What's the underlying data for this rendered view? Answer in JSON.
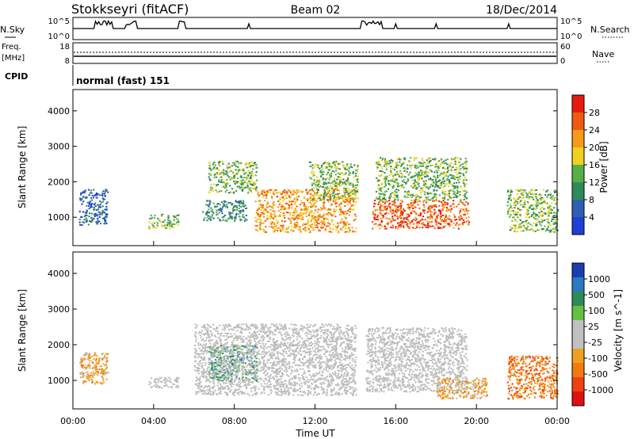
{
  "header": {
    "station": "Stokkseyri (fitACF)",
    "beam": "Beam 02",
    "date": "18/Dec/2014"
  },
  "top_panels": {
    "nsky_label": "N.Sky",
    "nsky_ticks": [
      "10^5",
      "10^0"
    ],
    "nsearch_label": "N.Search",
    "nsearch_ticks": [
      "10^5",
      "10^0"
    ],
    "freq_label_line1": "Freq.",
    "freq_label_line2": "[MHz]",
    "freq_ticks": [
      "18",
      "8"
    ],
    "nave_label": "Nave",
    "nave_ticks": [
      "60",
      "0"
    ],
    "cpid_label": "CPID",
    "cpid_value": "normal (fast) 151"
  },
  "colors": {
    "power_scale": [
      "#1f3fd6",
      "#2f5fb0",
      "#2f8a5a",
      "#55b04a",
      "#f0d020",
      "#f79a1a",
      "#f05a10",
      "#e81a10"
    ],
    "velocity_scale": [
      "#1a3db0",
      "#2a7ac0",
      "#2f8a5a",
      "#66c040",
      "#c0c0c0",
      "#c0c0c0",
      "#f0a020",
      "#f07a10",
      "#f04010",
      "#e01010"
    ],
    "ground_scatter": "#bdbdbd"
  },
  "chart_data": [
    {
      "type": "heatmap",
      "panel": "power",
      "ylabel": "Slant Range [km]",
      "xlabel": "Time UT",
      "x_ticks": [
        "00:00",
        "04:00",
        "08:00",
        "12:00",
        "16:00",
        "20:00",
        "00:00"
      ],
      "y_ticks": [
        "1000",
        "2000",
        "3000",
        "4000"
      ],
      "ylim": [
        200,
        4600
      ],
      "xlim_hours": [
        0,
        24
      ],
      "colorbar_label": "Power [dB]",
      "colorbar_ticks": [
        "4",
        "8",
        "12",
        "16",
        "20",
        "24",
        "28"
      ],
      "colorbar_range": [
        0,
        32
      ],
      "regions": [
        {
          "t0": 0.3,
          "t1": 1.7,
          "r0": 800,
          "r1": 1800,
          "level": 6
        },
        {
          "t0": 3.7,
          "t1": 5.2,
          "r0": 700,
          "r1": 1100,
          "level": 12
        },
        {
          "t0": 6.7,
          "t1": 9.1,
          "r0": 1700,
          "r1": 2600,
          "level": 14
        },
        {
          "t0": 6.4,
          "t1": 8.6,
          "r0": 900,
          "r1": 1500,
          "level": 8
        },
        {
          "t0": 9.0,
          "t1": 14.0,
          "r0": 600,
          "r1": 1800,
          "level": 22
        },
        {
          "t0": 11.7,
          "t1": 14.1,
          "r0": 1500,
          "r1": 2600,
          "level": 14
        },
        {
          "t0": 14.8,
          "t1": 19.6,
          "r0": 700,
          "r1": 1500,
          "level": 26
        },
        {
          "t0": 15.0,
          "t1": 19.5,
          "r0": 1500,
          "r1": 2700,
          "level": 14
        },
        {
          "t0": 21.5,
          "t1": 24.0,
          "r0": 600,
          "r1": 1800,
          "level": 14
        }
      ]
    },
    {
      "type": "heatmap",
      "panel": "velocity",
      "ylabel": "Slant Range [km]",
      "xlabel": "Time UT",
      "x_ticks": [
        "00:00",
        "04:00",
        "08:00",
        "12:00",
        "16:00",
        "20:00",
        "00:00"
      ],
      "y_ticks": [
        "1000",
        "2000",
        "3000",
        "4000"
      ],
      "ylim": [
        200,
        4600
      ],
      "xlim_hours": [
        0,
        24
      ],
      "colorbar_label": "Velocity [m s^-1]",
      "colorbar_ticks": [
        "1000",
        "500",
        "100",
        "25",
        "-25",
        "-100",
        "-500",
        "-1000"
      ],
      "regions": [
        {
          "t0": 0.3,
          "t1": 1.7,
          "r0": 900,
          "r1": 1800,
          "velocity": -300
        },
        {
          "t0": 3.7,
          "t1": 5.2,
          "r0": 800,
          "r1": 1100,
          "velocity": 0
        },
        {
          "t0": 6.7,
          "t1": 9.1,
          "r0": 1000,
          "r1": 2000,
          "velocity": 120
        },
        {
          "t0": 6.0,
          "t1": 14.0,
          "r0": 600,
          "r1": 2600,
          "velocity": 0
        },
        {
          "t0": 14.5,
          "t1": 19.5,
          "r0": 700,
          "r1": 2500,
          "velocity": 0
        },
        {
          "t0": 18.0,
          "t1": 20.5,
          "r0": 500,
          "r1": 1100,
          "velocity": -300
        },
        {
          "t0": 21.5,
          "t1": 24.0,
          "r0": 500,
          "r1": 1700,
          "velocity": -500
        }
      ]
    }
  ]
}
